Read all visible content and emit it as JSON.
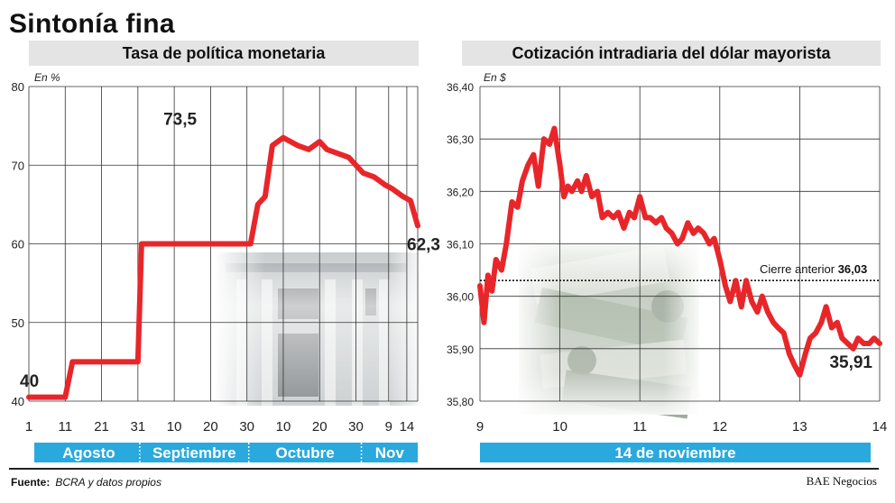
{
  "title": "Sintonía fina",
  "source_label": "Fuente:",
  "source_text": "BCRA y datos propios",
  "brand": "BAE Negocios",
  "colors": {
    "line": "#e8262a",
    "band": "#29a9dd",
    "panel_head": "#e4e4e4",
    "grid": "#333333"
  },
  "chart_data": [
    {
      "type": "line",
      "title": "Tasa de política monetaria",
      "ylabel": "En %",
      "ylim": [
        40,
        80
      ],
      "yticks": [
        "40",
        "50",
        "60",
        "70",
        "80"
      ],
      "xticks": [
        "1",
        "11",
        "21",
        "31",
        "10",
        "20",
        "30",
        "10",
        "20",
        "30",
        "9",
        "14"
      ],
      "months": [
        "Agosto",
        "Septiembre",
        "Octubre",
        "Nov"
      ],
      "annotations": [
        {
          "text": "40",
          "x": 1,
          "y": 40
        },
        {
          "text": "73,5",
          "x": 41,
          "y": 73.5
        },
        {
          "text": "62,3",
          "x": 108,
          "y": 62.3
        }
      ],
      "series": [
        {
          "x": [
            1,
            11,
            13,
            31,
            32,
            62,
            64,
            66,
            68,
            71,
            75,
            78,
            81,
            83,
            86,
            89,
            91,
            93,
            96,
            99,
            101,
            104,
            106,
            108
          ],
          "y": [
            40.5,
            40.5,
            45,
            45,
            60,
            60,
            65,
            66,
            72.5,
            73.5,
            72.5,
            72,
            73,
            72,
            71.5,
            71,
            70,
            69,
            68.5,
            67.5,
            67,
            66,
            65.5,
            62.3
          ]
        }
      ]
    },
    {
      "type": "line",
      "title": "Cotización intradiaria del dólar mayorista",
      "ylabel": "En $",
      "ylim": [
        35.8,
        36.4
      ],
      "yticks": [
        "35,80",
        "35,90",
        "36,00",
        "36,10",
        "36,20",
        "36,30",
        "36,40"
      ],
      "xticks": [
        "9",
        "10",
        "11",
        "12",
        "13",
        "14"
      ],
      "band_label": "14 de noviembre",
      "reference": {
        "label": "Cierre anterior",
        "value_label": "36,03",
        "y": 36.03
      },
      "annotations": [
        {
          "text": "35,91",
          "x": 14,
          "y": 35.91
        }
      ],
      "series": [
        {
          "x": [
            9.0,
            9.05,
            9.1,
            9.15,
            9.2,
            9.27,
            9.33,
            9.4,
            9.47,
            9.53,
            9.6,
            9.67,
            9.73,
            9.8,
            9.87,
            9.93,
            10.0,
            10.05,
            10.1,
            10.15,
            10.22,
            10.27,
            10.33,
            10.4,
            10.47,
            10.53,
            10.6,
            10.67,
            10.73,
            10.8,
            10.87,
            10.93,
            11.0,
            11.07,
            11.13,
            11.2,
            11.27,
            11.33,
            11.4,
            11.47,
            11.53,
            11.6,
            11.67,
            11.73,
            11.8,
            11.87,
            11.93,
            12.0,
            12.07,
            12.13,
            12.2,
            12.27,
            12.33,
            12.4,
            12.47,
            12.53,
            12.6,
            12.67,
            12.73,
            12.8,
            12.87,
            12.93,
            13.0,
            13.07,
            13.13,
            13.2,
            13.27,
            13.33,
            13.4,
            13.47,
            13.53,
            13.6,
            13.67,
            13.73,
            13.8,
            13.87,
            13.93,
            14.0
          ],
          "y": [
            36.02,
            35.95,
            36.04,
            36.01,
            36.07,
            36.05,
            36.1,
            36.18,
            36.17,
            36.22,
            36.25,
            36.27,
            36.21,
            36.3,
            36.29,
            36.32,
            36.25,
            36.19,
            36.21,
            36.2,
            36.22,
            36.2,
            36.23,
            36.19,
            36.2,
            36.15,
            36.16,
            36.15,
            36.16,
            36.13,
            36.16,
            36.15,
            36.19,
            36.15,
            36.15,
            36.14,
            36.15,
            36.13,
            36.12,
            36.1,
            36.11,
            36.14,
            36.12,
            36.13,
            36.12,
            36.1,
            36.11,
            36.07,
            36.02,
            35.99,
            36.03,
            35.98,
            36.03,
            35.99,
            35.97,
            36.0,
            35.97,
            35.95,
            35.94,
            35.93,
            35.89,
            35.87,
            35.85,
            35.89,
            35.92,
            35.93,
            35.95,
            35.98,
            35.94,
            35.95,
            35.92,
            35.91,
            35.9,
            35.92,
            35.91,
            35.91,
            35.92,
            35.91
          ]
        }
      ]
    }
  ]
}
